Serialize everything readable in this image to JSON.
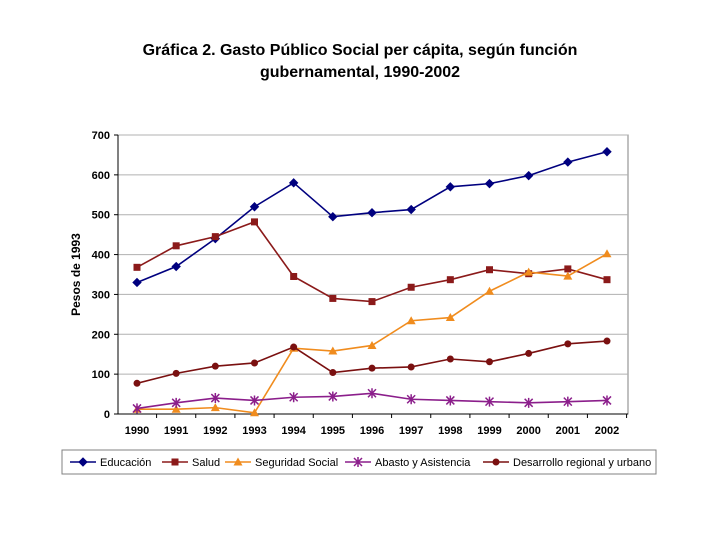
{
  "chart_data": {
    "type": "line",
    "title_line1": "Gráfica 2. Gasto Público Social per cápita, según función",
    "title_line2": "gubernamental, 1990-2002",
    "ylabel": "Pesos de 1993",
    "xlabel": "",
    "ylim": [
      0,
      700
    ],
    "yticks": [
      0,
      100,
      200,
      300,
      400,
      500,
      600,
      700
    ],
    "categories": [
      "1990",
      "1991",
      "1992",
      "1993",
      "1994",
      "1995",
      "1996",
      "1997",
      "1998",
      "1999",
      "2000",
      "2001",
      "2002"
    ],
    "grid": true,
    "legend_position": "bottom",
    "series": [
      {
        "name": "Educación",
        "color": "#00007F",
        "marker": "diamond",
        "values": [
          330,
          370,
          440,
          520,
          580,
          495,
          505,
          513,
          570,
          578,
          598,
          632,
          658
        ]
      },
      {
        "name": "Salud",
        "color": "#8B1A1A",
        "marker": "square",
        "values": [
          368,
          422,
          445,
          482,
          345,
          290,
          282,
          318,
          337,
          362,
          352,
          364,
          337
        ]
      },
      {
        "name": "Seguridad Social",
        "color": "#F08C1E",
        "marker": "triangle",
        "values": [
          12,
          12,
          16,
          3,
          165,
          158,
          172,
          234,
          242,
          308,
          356,
          346,
          402
        ]
      },
      {
        "name": "Abasto y Asistencia",
        "color": "#8B1E8B",
        "marker": "star",
        "values": [
          14,
          28,
          40,
          34,
          42,
          44,
          52,
          37,
          34,
          31,
          28,
          31,
          34
        ]
      },
      {
        "name": "Desarrollo regional y urbano",
        "color": "#7A1010",
        "marker": "circle",
        "values": [
          77,
          102,
          120,
          128,
          168,
          104,
          115,
          118,
          138,
          131,
          152,
          176,
          183
        ]
      }
    ]
  }
}
